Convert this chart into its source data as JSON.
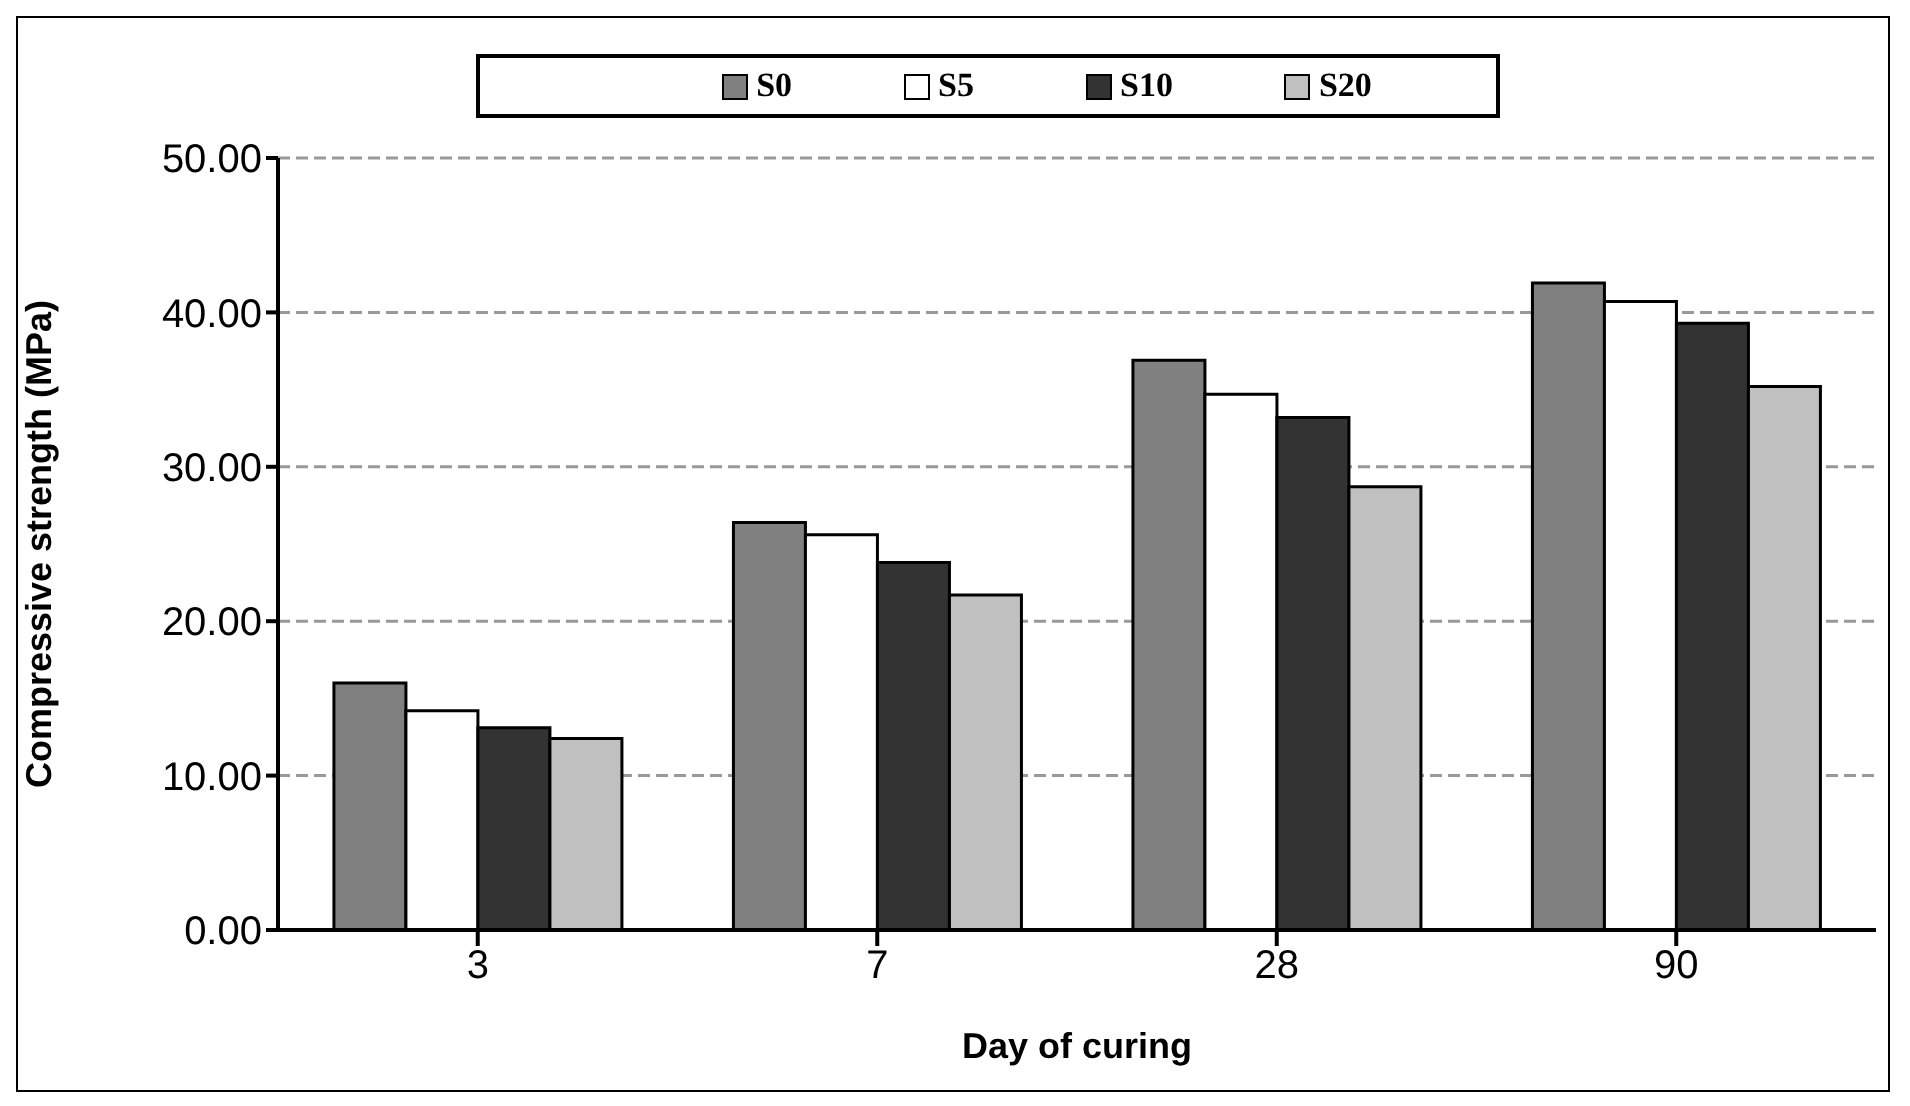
{
  "chart_data": {
    "type": "bar",
    "xlabel": "Day of curing",
    "ylabel": "Compressive strength (MPa)",
    "categories": [
      "3",
      "7",
      "28",
      "90"
    ],
    "series": [
      {
        "name": "S0",
        "color": "#808080",
        "values": [
          16.0,
          26.4,
          36.9,
          41.9
        ]
      },
      {
        "name": "S5",
        "color": "#ffffff",
        "values": [
          14.2,
          25.6,
          34.7,
          40.7
        ]
      },
      {
        "name": "S10",
        "color": "#333333",
        "values": [
          13.1,
          23.8,
          33.2,
          39.3
        ]
      },
      {
        "name": "S20",
        "color": "#c0c0c0",
        "values": [
          12.4,
          21.7,
          28.7,
          35.2
        ]
      }
    ],
    "ylim": [
      0,
      50
    ],
    "yticks": [
      {
        "value": 0,
        "label": "0.00"
      },
      {
        "value": 10,
        "label": "10.00"
      },
      {
        "value": 20,
        "label": "20.00"
      },
      {
        "value": 30,
        "label": "30.00"
      },
      {
        "value": 40,
        "label": "40.00"
      },
      {
        "value": 50,
        "label": "50.00"
      }
    ],
    "grid": "y",
    "legend": "top"
  }
}
